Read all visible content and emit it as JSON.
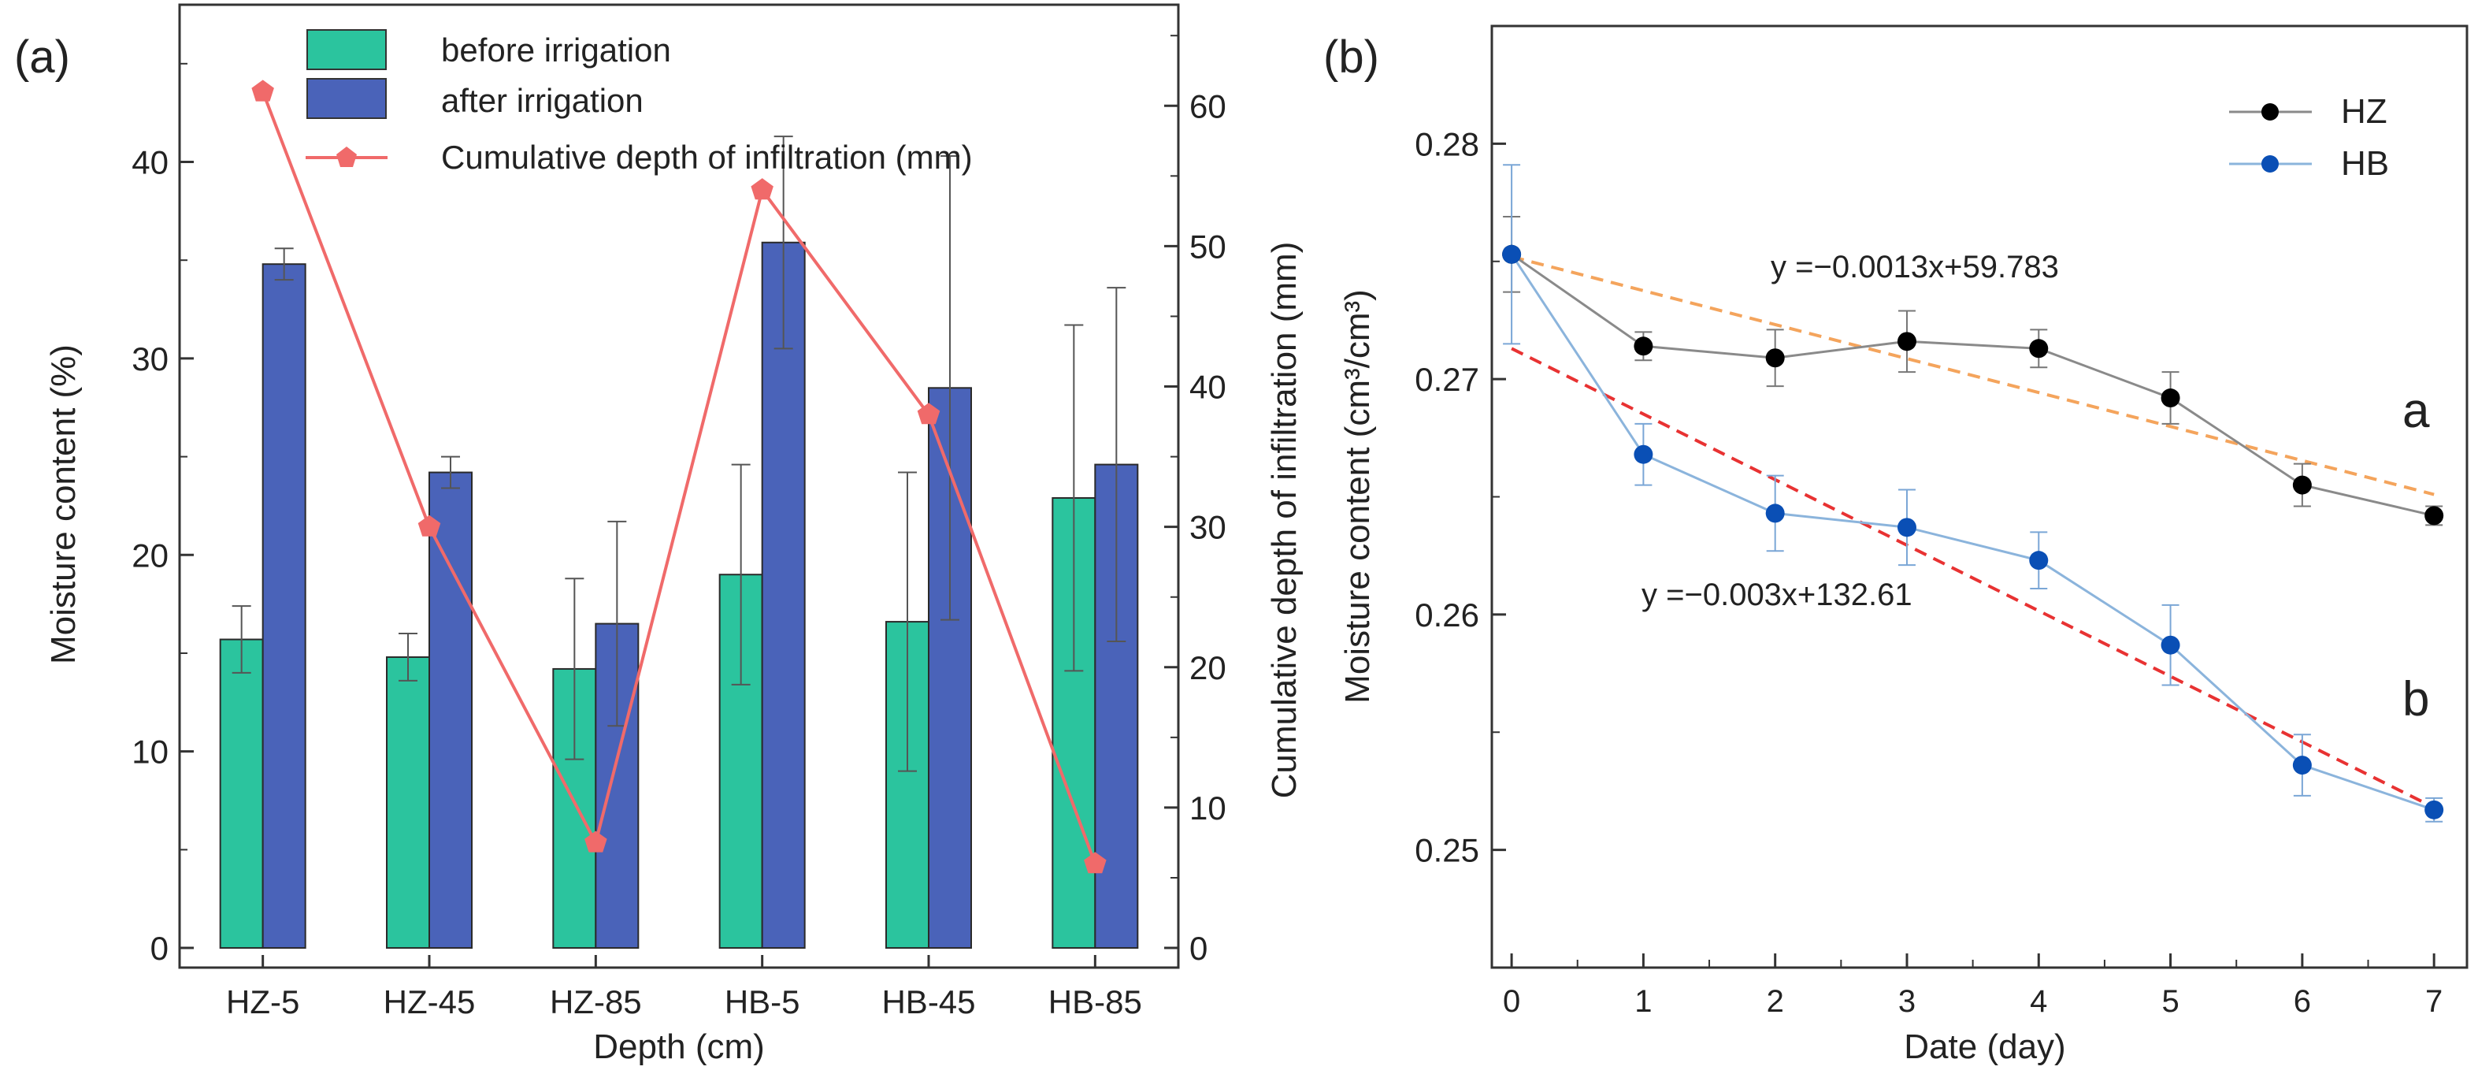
{
  "colors": {
    "before": "#2bc49e",
    "after": "#4a63b9",
    "line_a": "#f06a6a",
    "hz": "#000000",
    "hb": "#0a4fb5",
    "hz_line": "#8a8a8a",
    "hb_line": "#8bb4dc",
    "fit_hz": "#f4a45c",
    "fit_hb": "#e83232"
  },
  "chart_data": [
    {
      "panel_label": "(a)",
      "type": "bar",
      "xlabel": "Depth (cm)",
      "ylabel": "Moisture content (%)",
      "y2label": "Cumulative depth of infiltration (mm)",
      "categories": [
        "HZ-5",
        "HZ-45",
        "HZ-85",
        "HB-5",
        "HB-45",
        "HB-85"
      ],
      "ylim": [
        -1,
        48
      ],
      "yticks": [
        0,
        10,
        20,
        30,
        40
      ],
      "y2lim": [
        -1.4,
        67.2
      ],
      "y2ticks": [
        0,
        10,
        20,
        30,
        40,
        50,
        60
      ],
      "legend": {
        "position": "top-center",
        "before": "before irrigation",
        "after": "after irrigation",
        "line": "Cumulative depth of infiltration (mm)"
      },
      "series": [
        {
          "name": "before irrigation",
          "values": [
            15.7,
            14.8,
            14.2,
            19.0,
            16.6,
            22.9
          ],
          "errors": [
            1.7,
            1.2,
            4.6,
            5.6,
            7.6,
            8.8
          ]
        },
        {
          "name": "after irrigation",
          "values": [
            34.8,
            24.2,
            16.5,
            35.9,
            28.5,
            24.6
          ],
          "errors": [
            0.8,
            0.8,
            5.2,
            5.4,
            11.8,
            9.0
          ]
        },
        {
          "name": "Cumulative depth of infiltration (mm)",
          "axis": "right",
          "values": [
            61.0,
            30.0,
            7.5,
            54.0,
            38.0,
            6.0
          ]
        }
      ]
    },
    {
      "panel_label": "(b)",
      "type": "line",
      "xlabel": "Date (day)",
      "ylabel": "Moisture content (cm³/cm³)",
      "x": [
        0,
        1,
        2,
        3,
        4,
        5,
        6,
        7
      ],
      "xlim": [
        -0.15,
        7.25
      ],
      "ylim": [
        0.245,
        0.285
      ],
      "yticks": [
        "0.25",
        "0.26",
        "0.27",
        "0.28"
      ],
      "legend": {
        "position": "top-right"
      },
      "series": [
        {
          "name": "HZ",
          "values": [
            0.2753,
            0.2714,
            0.2709,
            0.2716,
            0.2713,
            0.2692,
            0.2655,
            0.2642
          ],
          "errors": [
            0.0016,
            0.0006,
            0.0012,
            0.0013,
            0.0008,
            0.0011,
            0.0009,
            0.0004
          ]
        },
        {
          "name": "HB",
          "values": [
            0.2753,
            0.2668,
            0.2643,
            0.2637,
            0.2623,
            0.2587,
            0.2536,
            0.2517
          ],
          "errors": [
            0.0038,
            0.0013,
            0.0016,
            0.0016,
            0.0012,
            0.0017,
            0.0013,
            0.0005
          ]
        }
      ],
      "fits": [
        {
          "series": "HZ",
          "start": 0.2752,
          "end": 0.2651,
          "equation": "y =−0.0013x+59.783"
        },
        {
          "series": "HB",
          "start": 0.2713,
          "end": 0.2518,
          "equation": "y =−0.003x+132.61"
        }
      ],
      "annotations": [
        "a",
        "b"
      ]
    }
  ]
}
